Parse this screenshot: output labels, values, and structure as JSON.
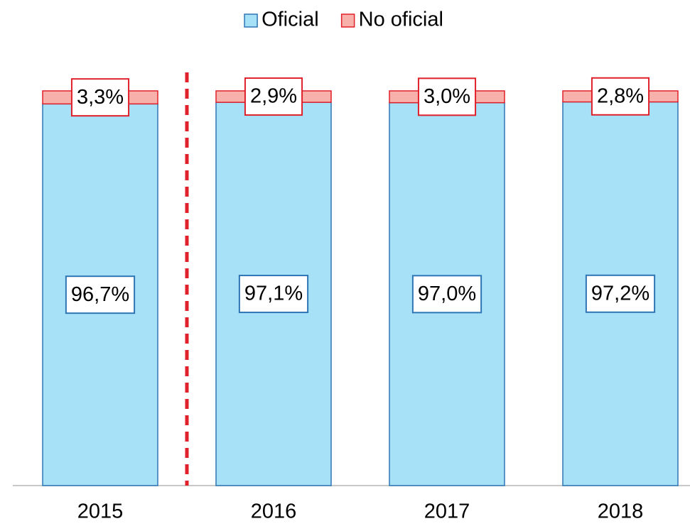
{
  "chart_data": {
    "type": "bar",
    "stacked": true,
    "categories": [
      "2015",
      "2016",
      "2017",
      "2018"
    ],
    "series": [
      {
        "name": "Oficial",
        "color": "#a6e1f7",
        "edgecolor": "#2e75b6",
        "values": [
          96.7,
          97.1,
          97.0,
          97.2
        ],
        "value_labels": [
          "96,7%",
          "97,1%",
          "97,0%",
          "97,2%"
        ]
      },
      {
        "name": "No oficial",
        "color": "#f7b1aa",
        "edgecolor": "#e0202a",
        "values": [
          3.3,
          2.9,
          3.0,
          2.8
        ],
        "value_labels": [
          "3,3%",
          "2,9%",
          "3,0%",
          "2,8%"
        ]
      }
    ],
    "legend": "top"
  }
}
